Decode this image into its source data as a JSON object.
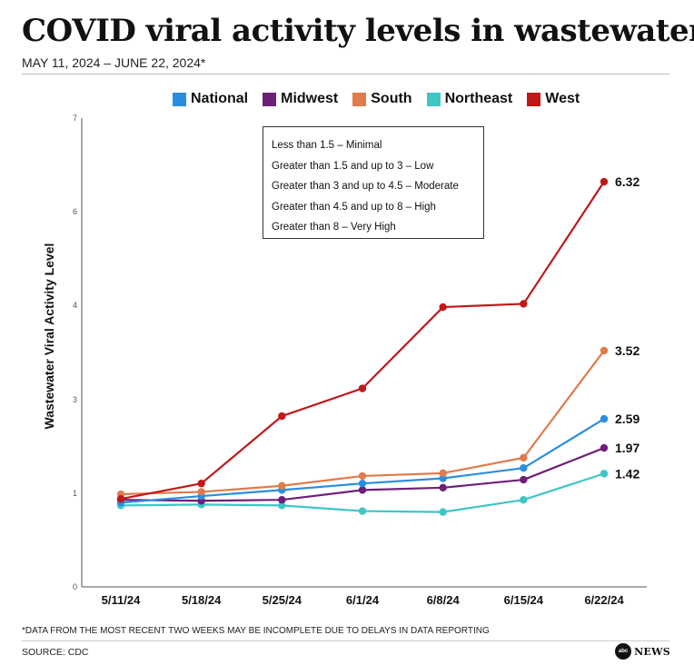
{
  "header": {
    "title": "COVID viral activity levels in wastewater",
    "subtitle": "MAY 11, 2024 – JUNE 22, 2024*"
  },
  "legend_items": [
    {
      "label": "National",
      "color": "#2a8ee0"
    },
    {
      "label": "Midwest",
      "color": "#6e1f78"
    },
    {
      "label": "South",
      "color": "#e07b4c"
    },
    {
      "label": "Northeast",
      "color": "#3ec6c6"
    },
    {
      "label": "West",
      "color": "#c01818"
    }
  ],
  "info_box": {
    "lines": [
      "Less than 1.5 – Minimal",
      "Greater than 1.5 and up to 3 – Low",
      "Greater than 3 and up to 4.5 – Moderate",
      "Greater than 4.5 and up to 8 – High",
      "Greater than 8 – Very High"
    ]
  },
  "chart_data": {
    "type": "line",
    "title": "COVID viral activity levels in wastewater",
    "xlabel": "",
    "ylabel": "Wastewater Viral Activity Level",
    "categories": [
      "5/11/24",
      "5/18/24",
      "5/25/24",
      "6/1/24",
      "6/8/24",
      "6/15/24",
      "6/22/24"
    ],
    "y_ticks": [
      0,
      1,
      3,
      4,
      6,
      7
    ],
    "y_tick_positions": [
      0,
      1,
      2,
      3,
      4,
      5
    ],
    "series": [
      {
        "name": "National",
        "color": "#2a8ee0",
        "values": [
          0.9,
          0.97,
          1.07,
          1.21,
          1.32,
          1.54,
          2.59
        ],
        "end_label": "2.59"
      },
      {
        "name": "Midwest",
        "color": "#6e1f78",
        "values": [
          0.93,
          0.92,
          0.93,
          1.07,
          1.12,
          1.29,
          1.97
        ],
        "end_label": "1.97"
      },
      {
        "name": "South",
        "color": "#e07b4c",
        "values": [
          0.99,
          1.03,
          1.16,
          1.37,
          1.43,
          1.76,
          3.52
        ],
        "end_label": "3.52"
      },
      {
        "name": "Northeast",
        "color": "#3ec6c6",
        "values": [
          0.87,
          0.88,
          0.87,
          0.81,
          0.8,
          0.93,
          1.42
        ],
        "end_label": "1.42"
      },
      {
        "name": "West",
        "color": "#c01818",
        "values": [
          0.94,
          1.21,
          2.65,
          3.12,
          3.98,
          4.03,
          6.32
        ],
        "end_label": "6.32"
      }
    ],
    "end_label_values": [
      6.32,
      3.52,
      2.59,
      1.97,
      1.42
    ],
    "grid": false
  },
  "footer": {
    "footnote": "*DATA FROM THE MOST RECENT TWO WEEKS MAY BE INCOMPLETE DUE TO DELAYS IN DATA REPORTING",
    "source": "SOURCE: CDC",
    "logo_mark": "abc",
    "logo_text": "NEWS"
  }
}
